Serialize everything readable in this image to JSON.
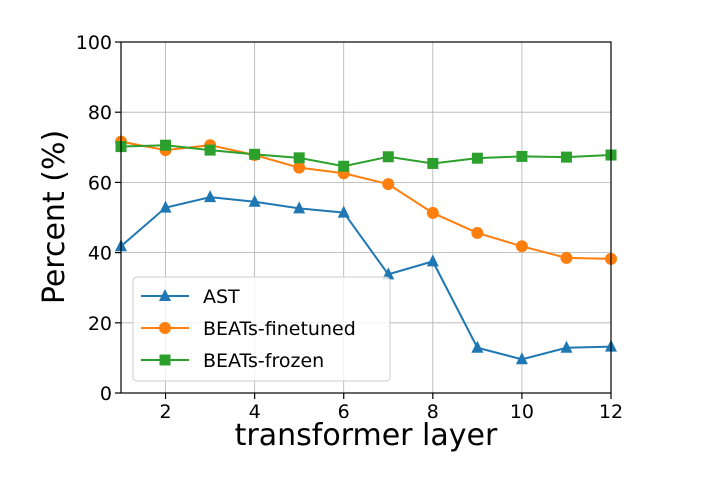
{
  "chart_data": {
    "type": "line",
    "title": "",
    "xlabel": "transformer layer",
    "ylabel": "Percent (%)",
    "xlim": [
      1,
      12
    ],
    "ylim": [
      0,
      100
    ],
    "x_ticks": [
      2,
      4,
      6,
      8,
      10,
      12
    ],
    "y_ticks": [
      0,
      20,
      40,
      60,
      80,
      100
    ],
    "grid": true,
    "legend_position": "lower-left",
    "x": [
      1,
      2,
      3,
      4,
      5,
      6,
      7,
      8,
      9,
      10,
      11,
      12
    ],
    "series": [
      {
        "name": "AST",
        "color": "#1f77b4",
        "marker": "triangle",
        "values": [
          41.8,
          52.8,
          55.8,
          54.5,
          52.6,
          51.4,
          33.8,
          37.5,
          12.9,
          9.6,
          12.9,
          13.2
        ]
      },
      {
        "name": "BEATs-finetuned",
        "color": "#ff7f0e",
        "marker": "circle",
        "values": [
          71.6,
          69.2,
          70.6,
          67.8,
          64.2,
          62.6,
          59.5,
          51.3,
          45.6,
          41.8,
          38.5,
          38.2
        ]
      },
      {
        "name": "BEATs-frozen",
        "color": "#2ca02c",
        "marker": "square",
        "values": [
          70.2,
          70.6,
          69.2,
          68.0,
          67.0,
          64.6,
          67.3,
          65.4,
          66.9,
          67.4,
          67.2,
          67.8
        ]
      }
    ]
  }
}
